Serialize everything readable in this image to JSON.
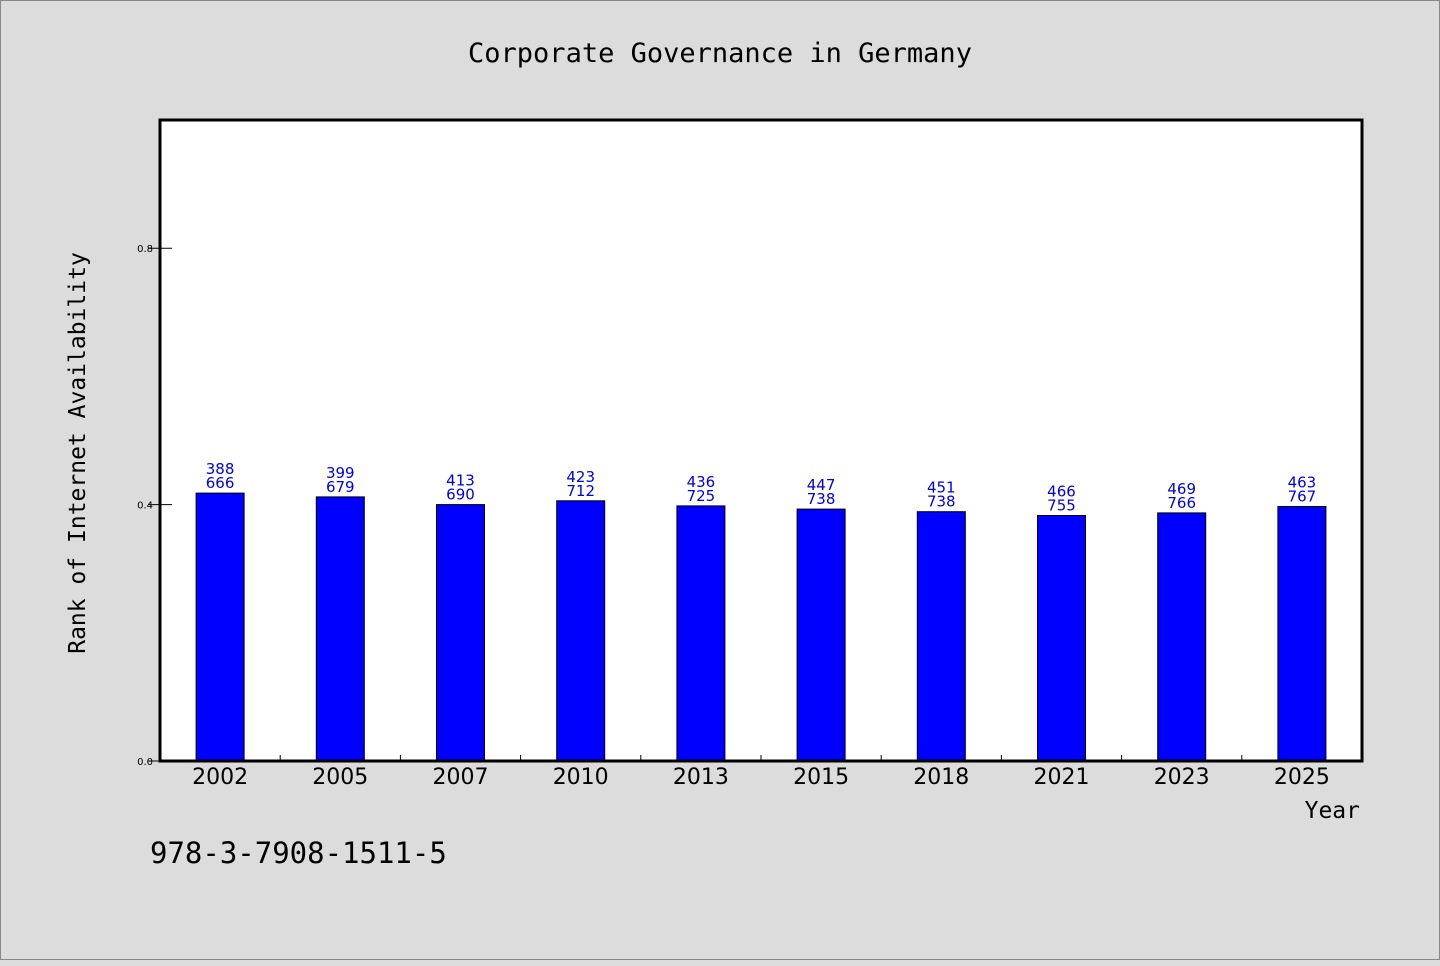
{
  "colors": {
    "background": "#dcdcdc",
    "plot_background": "#ffffff",
    "bar_fill": "#0000ff",
    "label_color": "#0000e6",
    "axis_color": "#000000"
  },
  "footer": {
    "isbn": "978-3-7908-1511-5"
  },
  "chart_data": {
    "type": "bar",
    "title": "Corporate Governance in Germany",
    "xlabel": "Year",
    "ylabel": "Rank of Internet Availability",
    "categories": [
      "2002",
      "2005",
      "2007",
      "2010",
      "2013",
      "2015",
      "2018",
      "2021",
      "2023",
      "2025"
    ],
    "values": [
      0.418,
      0.412,
      0.4,
      0.406,
      0.398,
      0.393,
      0.389,
      0.383,
      0.387,
      0.397
    ],
    "label_top": [
      "388",
      "399",
      "413",
      "423",
      "436",
      "447",
      "451",
      "466",
      "469",
      "463"
    ],
    "label_bottom": [
      "666",
      "679",
      "690",
      "712",
      "725",
      "738",
      "738",
      "755",
      "766",
      "767"
    ],
    "ylim": [
      0,
      1.0
    ],
    "yticks": [
      0.0,
      0.4,
      0.8
    ],
    "ytick_labels": [
      "0.0",
      "0.4",
      "0.8"
    ],
    "grid": false,
    "legend": "none"
  }
}
